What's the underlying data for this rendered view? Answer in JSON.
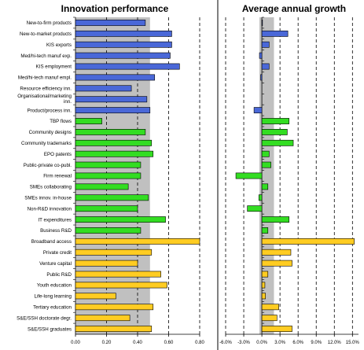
{
  "colors": {
    "background": "#ffffff",
    "plot_shade": "#c0c0c0",
    "group_1": "#4a68d8",
    "group_2": "#33dd22",
    "group_3": "#ffcc22",
    "bar_stroke": "#000000"
  },
  "chart_data": [
    {
      "type": "bar",
      "orientation": "horizontal",
      "title": "Innovation performance",
      "categories": [
        "New-to-firm products",
        "New-to-market products",
        "KIS exports",
        "Med/hi-tech manuf exp.",
        "KIS employment",
        "Med/hi-tech manuf empl.",
        "Resource efficiency inn.",
        "Organisational/marketing inn.",
        "Product/process inn.",
        "TBP flows",
        "Community designs",
        "Community trademarks",
        "EPO patents",
        "Public-private co-publ.",
        "Firm renewal",
        "SMEs collaborating",
        "SMEs innov. in-house",
        "Non-R&D innovation",
        "IT expenditures",
        "Business R&D",
        "Broadband access",
        "Private credit",
        "Venture capital",
        "Public R&D",
        "Youth education",
        "Life-long learning",
        "Tertiary education",
        "S&E/SSH doctorate degr.",
        "S&E/SSH graduates"
      ],
      "category_groups": [
        1,
        1,
        1,
        1,
        1,
        1,
        1,
        1,
        1,
        2,
        2,
        2,
        2,
        2,
        2,
        2,
        2,
        2,
        2,
        2,
        3,
        3,
        3,
        3,
        3,
        3,
        3,
        3,
        3
      ],
      "values": [
        0.45,
        0.62,
        0.62,
        0.61,
        0.67,
        0.51,
        0.36,
        0.46,
        0.48,
        0.17,
        0.45,
        0.49,
        0.5,
        0.42,
        0.42,
        0.34,
        0.47,
        0.4,
        0.58,
        0.42,
        0.8,
        0.49,
        0.4,
        0.55,
        0.59,
        0.26,
        0.5,
        0.35,
        0.49
      ],
      "xlim": [
        0,
        0.8
      ],
      "xticks": [
        "0.00",
        "0.20",
        "0.40",
        "0.60",
        "0.80"
      ],
      "reference_value": 0.48,
      "grid": "vertical dashed"
    },
    {
      "type": "bar",
      "orientation": "horizontal",
      "title": "Average annual growth",
      "categories_shared_with": "Innovation performance",
      "category_groups": [
        1,
        1,
        1,
        1,
        1,
        1,
        1,
        1,
        1,
        2,
        2,
        2,
        2,
        2,
        2,
        2,
        2,
        2,
        2,
        2,
        3,
        3,
        3,
        3,
        3,
        3,
        3,
        3,
        3
      ],
      "values": [
        0.1,
        4.3,
        1.2,
        -0.4,
        1.2,
        -0.2,
        null,
        null,
        -1.3,
        4.5,
        4.2,
        5.2,
        1.2,
        1.5,
        -4.3,
        1.0,
        -0.5,
        -2.4,
        4.5,
        1.0,
        15.3,
        4.8,
        5.0,
        1.0,
        0.5,
        0.6,
        2.8,
        2.5,
        5.0
      ],
      "xlim": [
        -6,
        16
      ],
      "xticks": [
        "-6.0%",
        "-3.0%",
        "0.0%",
        "3.0%",
        "6.0%",
        "9.0%",
        "12.0%",
        "15.0%"
      ],
      "shaded_band": [
        -0.4,
        2.0
      ],
      "grid": "vertical dashed"
    }
  ]
}
